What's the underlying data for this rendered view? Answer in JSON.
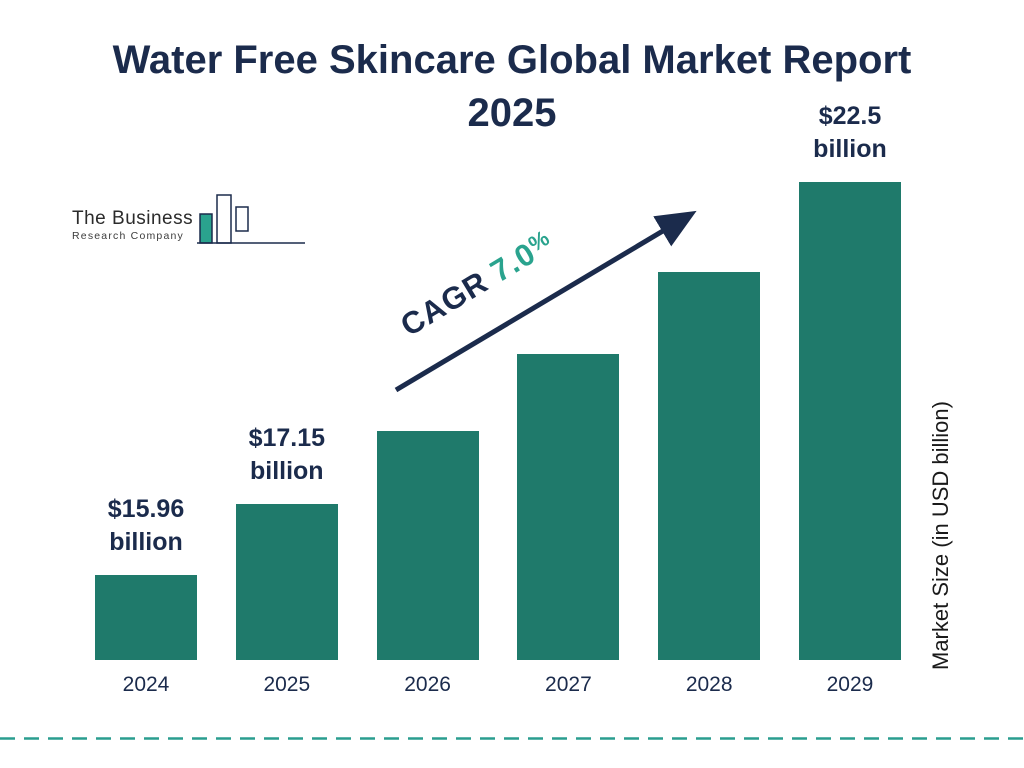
{
  "title": "Water Free Skincare Global Market Report 2025",
  "logo": {
    "line1": "The Business",
    "line2": "Research Company"
  },
  "colors": {
    "navy": "#1b2b4c",
    "bar_teal": "#1f7a6b",
    "teal_bright": "#2aa38e",
    "dashed_line": "#2a9d8f"
  },
  "chart_data": {
    "type": "bar",
    "title": "Water Free Skincare Global Market Report 2025",
    "categories": [
      "2024",
      "2025",
      "2026",
      "2027",
      "2028",
      "2029"
    ],
    "values": [
      15.96,
      17.15,
      18.35,
      19.64,
      21.01,
      22.5
    ],
    "values_note": "2026-2028 estimated from bar heights; labeled values are 2024, 2025, 2029",
    "bar_labels": [
      {
        "amount": "$15.96",
        "unit": "billion"
      },
      {
        "amount": "$17.15",
        "unit": "billion"
      },
      null,
      null,
      null,
      {
        "amount": "$22.5",
        "unit": "billion"
      }
    ],
    "cagr": {
      "label": "CAGR",
      "value": "7.0",
      "pct": "%"
    },
    "ylabel": "Market Size (in USD billion)",
    "xlabel": "",
    "ylim": [
      14.5,
      23
    ],
    "grid": false,
    "legend": "none"
  }
}
